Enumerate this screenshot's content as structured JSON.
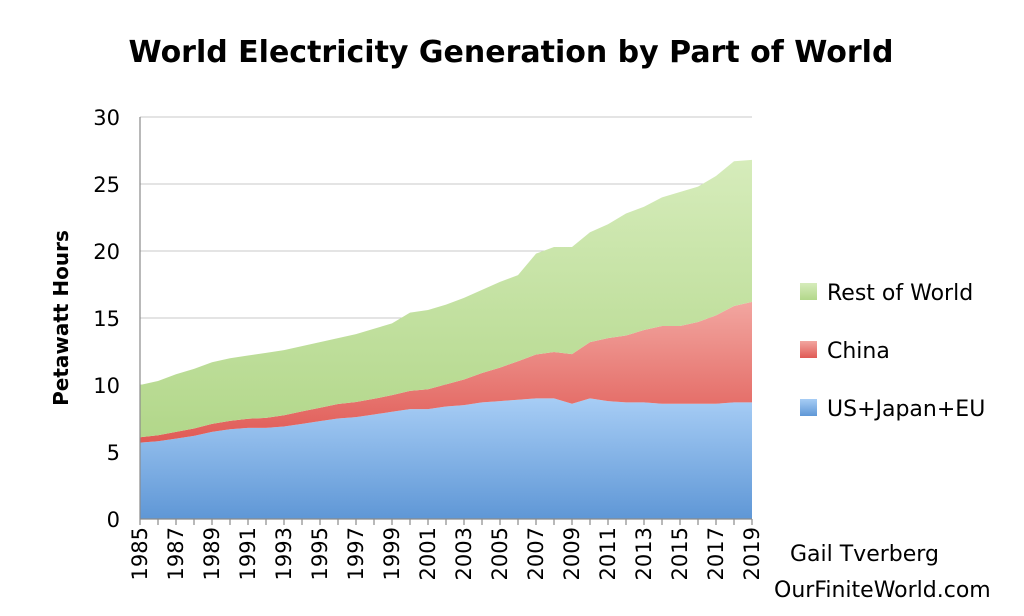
{
  "chart_data": {
    "type": "area",
    "stacked": true,
    "title": "World Electricity Generation by Part of World",
    "ylabel": "Petawatt Hours",
    "xlabel": "",
    "ylim": [
      0,
      30
    ],
    "yticks": [
      "0",
      "5",
      "10",
      "15",
      "20",
      "25",
      "30"
    ],
    "xtick_labels": [
      "1985",
      "1987",
      "1989",
      "1991",
      "1993",
      "1995",
      "1997",
      "1999",
      "2001",
      "2003",
      "2005",
      "2007",
      "2009",
      "2011",
      "2013",
      "2015",
      "2017",
      "2019"
    ],
    "grid": true,
    "legend_position": "right",
    "x": [
      1985,
      1986,
      1987,
      1988,
      1989,
      1990,
      1991,
      1992,
      1993,
      1994,
      1995,
      1996,
      1997,
      1998,
      1999,
      2000,
      2001,
      2002,
      2003,
      2004,
      2005,
      2006,
      2007,
      2008,
      2009,
      2010,
      2011,
      2012,
      2013,
      2014,
      2015,
      2016,
      2017,
      2018,
      2019
    ],
    "series": [
      {
        "name": "US+Japan+EU",
        "color": "#7aaee3",
        "values": [
          5.7,
          5.8,
          6.0,
          6.2,
          6.5,
          6.7,
          6.8,
          6.8,
          6.9,
          7.1,
          7.3,
          7.5,
          7.6,
          7.8,
          8.0,
          8.2,
          8.2,
          8.4,
          8.5,
          8.7,
          8.8,
          8.9,
          9.0,
          9.0,
          8.6,
          9.0,
          8.8,
          8.7,
          8.7,
          8.6,
          8.6,
          8.6,
          8.6,
          8.7,
          8.7
        ]
      },
      {
        "name": "China",
        "color": "#e8706a",
        "values": [
          0.4,
          0.45,
          0.5,
          0.55,
          0.6,
          0.62,
          0.68,
          0.75,
          0.84,
          0.93,
          1.0,
          1.08,
          1.13,
          1.17,
          1.24,
          1.36,
          1.48,
          1.65,
          1.91,
          2.2,
          2.5,
          2.87,
          3.28,
          3.46,
          3.7,
          4.2,
          4.7,
          4.99,
          5.4,
          5.8,
          5.8,
          6.1,
          6.6,
          7.2,
          7.5
        ]
      },
      {
        "name": "Rest of World",
        "color": "#bfe09c",
        "values": [
          3.9,
          4.05,
          4.3,
          4.45,
          4.6,
          4.68,
          4.72,
          4.85,
          4.86,
          4.87,
          4.9,
          4.92,
          5.07,
          5.23,
          5.36,
          5.84,
          5.92,
          5.95,
          6.09,
          6.2,
          6.4,
          6.43,
          7.52,
          7.84,
          8.0,
          8.2,
          8.5,
          9.11,
          9.2,
          9.6,
          10.0,
          10.1,
          10.4,
          10.8,
          10.6
        ]
      }
    ]
  },
  "credit": {
    "line1": "Gail Tverberg",
    "line2": "OurFiniteWorld.com"
  }
}
